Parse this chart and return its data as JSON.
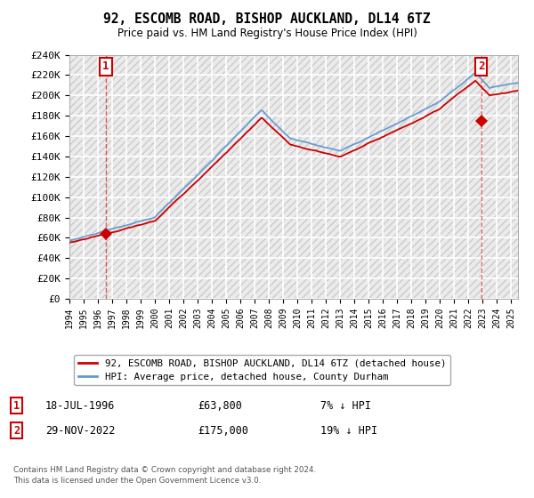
{
  "title": "92, ESCOMB ROAD, BISHOP AUCKLAND, DL14 6TZ",
  "subtitle": "Price paid vs. HM Land Registry's House Price Index (HPI)",
  "ylim_min": 0,
  "ylim_max": 240000,
  "yticks": [
    0,
    20000,
    40000,
    60000,
    80000,
    100000,
    120000,
    140000,
    160000,
    180000,
    200000,
    220000,
    240000
  ],
  "ytick_labels": [
    "£0",
    "£20K",
    "£40K",
    "£60K",
    "£80K",
    "£100K",
    "£120K",
    "£140K",
    "£160K",
    "£180K",
    "£200K",
    "£220K",
    "£240K"
  ],
  "background_color": "#ffffff",
  "plot_bg_color": "#ebebeb",
  "grid_color": "#ffffff",
  "hpi_color": "#6699cc",
  "price_color": "#cc0000",
  "legend_label_price": "92, ESCOMB ROAD, BISHOP AUCKLAND, DL14 6TZ (detached house)",
  "legend_label_hpi": "HPI: Average price, detached house, County Durham",
  "sale1_date": "18-JUL-1996",
  "sale1_price": 63800,
  "sale1_year": 1996.54,
  "sale1_label": "1",
  "sale1_pct": "7% ↓ HPI",
  "sale2_date": "29-NOV-2022",
  "sale2_price": 175000,
  "sale2_year": 2022.91,
  "sale2_label": "2",
  "sale2_pct": "19% ↓ HPI",
  "footer1": "Contains HM Land Registry data © Crown copyright and database right 2024.",
  "footer2": "This data is licensed under the Open Government Licence v3.0.",
  "xmin": 1994,
  "xmax": 2025.5
}
